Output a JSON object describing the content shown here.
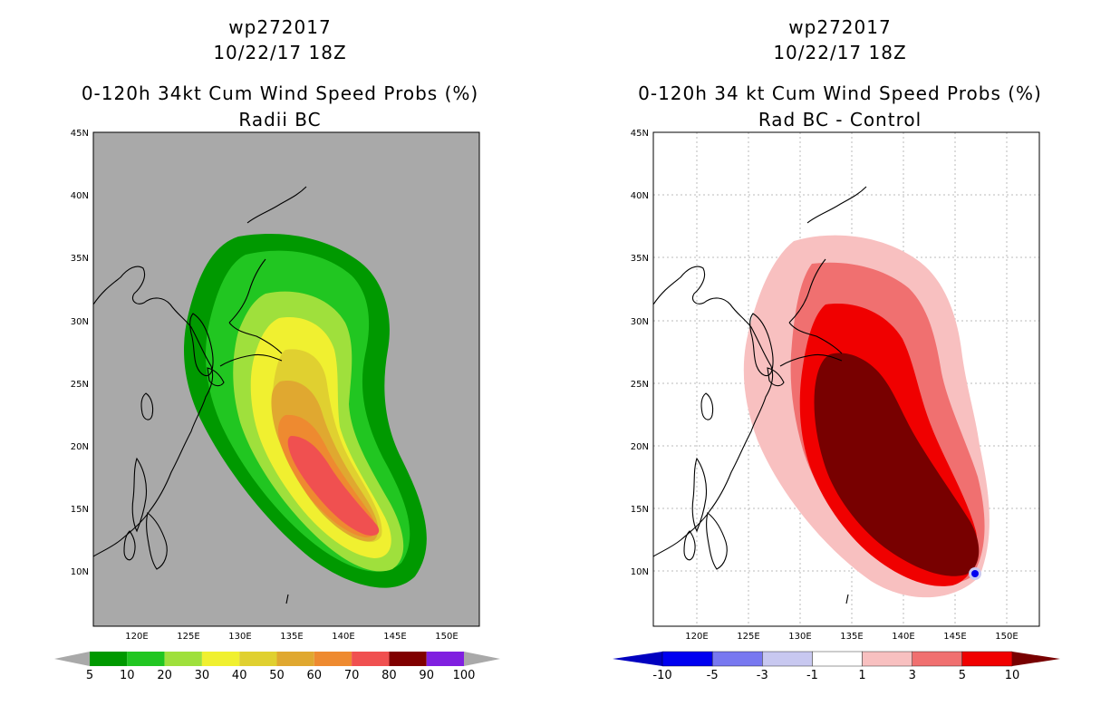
{
  "left": {
    "storm_id": "wp272017",
    "datetime": "10/22/17 18Z",
    "title": "0-120h 34kt Cum Wind Speed Probs (%)",
    "subtitle": "Radii BC",
    "colorbar": {
      "labels": [
        "5",
        "10",
        "20",
        "30",
        "40",
        "50",
        "60",
        "70",
        "80",
        "90",
        "100"
      ],
      "colors": [
        "#009900",
        "#21c621",
        "#9fe03c",
        "#f0f030",
        "#e0d030",
        "#e0a830",
        "#ee8a30",
        "#f05050",
        "#800000",
        "#8020e0"
      ]
    }
  },
  "right": {
    "storm_id": "wp272017",
    "datetime": "10/22/17 18Z",
    "title": "0-120h 34 kt Cum Wind Speed Probs (%)",
    "subtitle": "Rad BC - Control",
    "colorbar": {
      "labels": [
        "-10",
        "-5",
        "-3",
        "-1",
        "1",
        "3",
        "5",
        "10"
      ],
      "colors": [
        "#0000c0",
        "#0000f0",
        "#7878f0",
        "#c8c8f0",
        "#ffffff",
        "#f8c0c0",
        "#f07070",
        "#f00000",
        "#780000"
      ]
    }
  },
  "axes": {
    "lat_labels": [
      "45N",
      "40N",
      "35N",
      "30N",
      "25N",
      "20N",
      "15N",
      "10N"
    ],
    "lon_labels": [
      "120E",
      "125E",
      "130E",
      "135E",
      "140E",
      "145E",
      "150E"
    ]
  }
}
